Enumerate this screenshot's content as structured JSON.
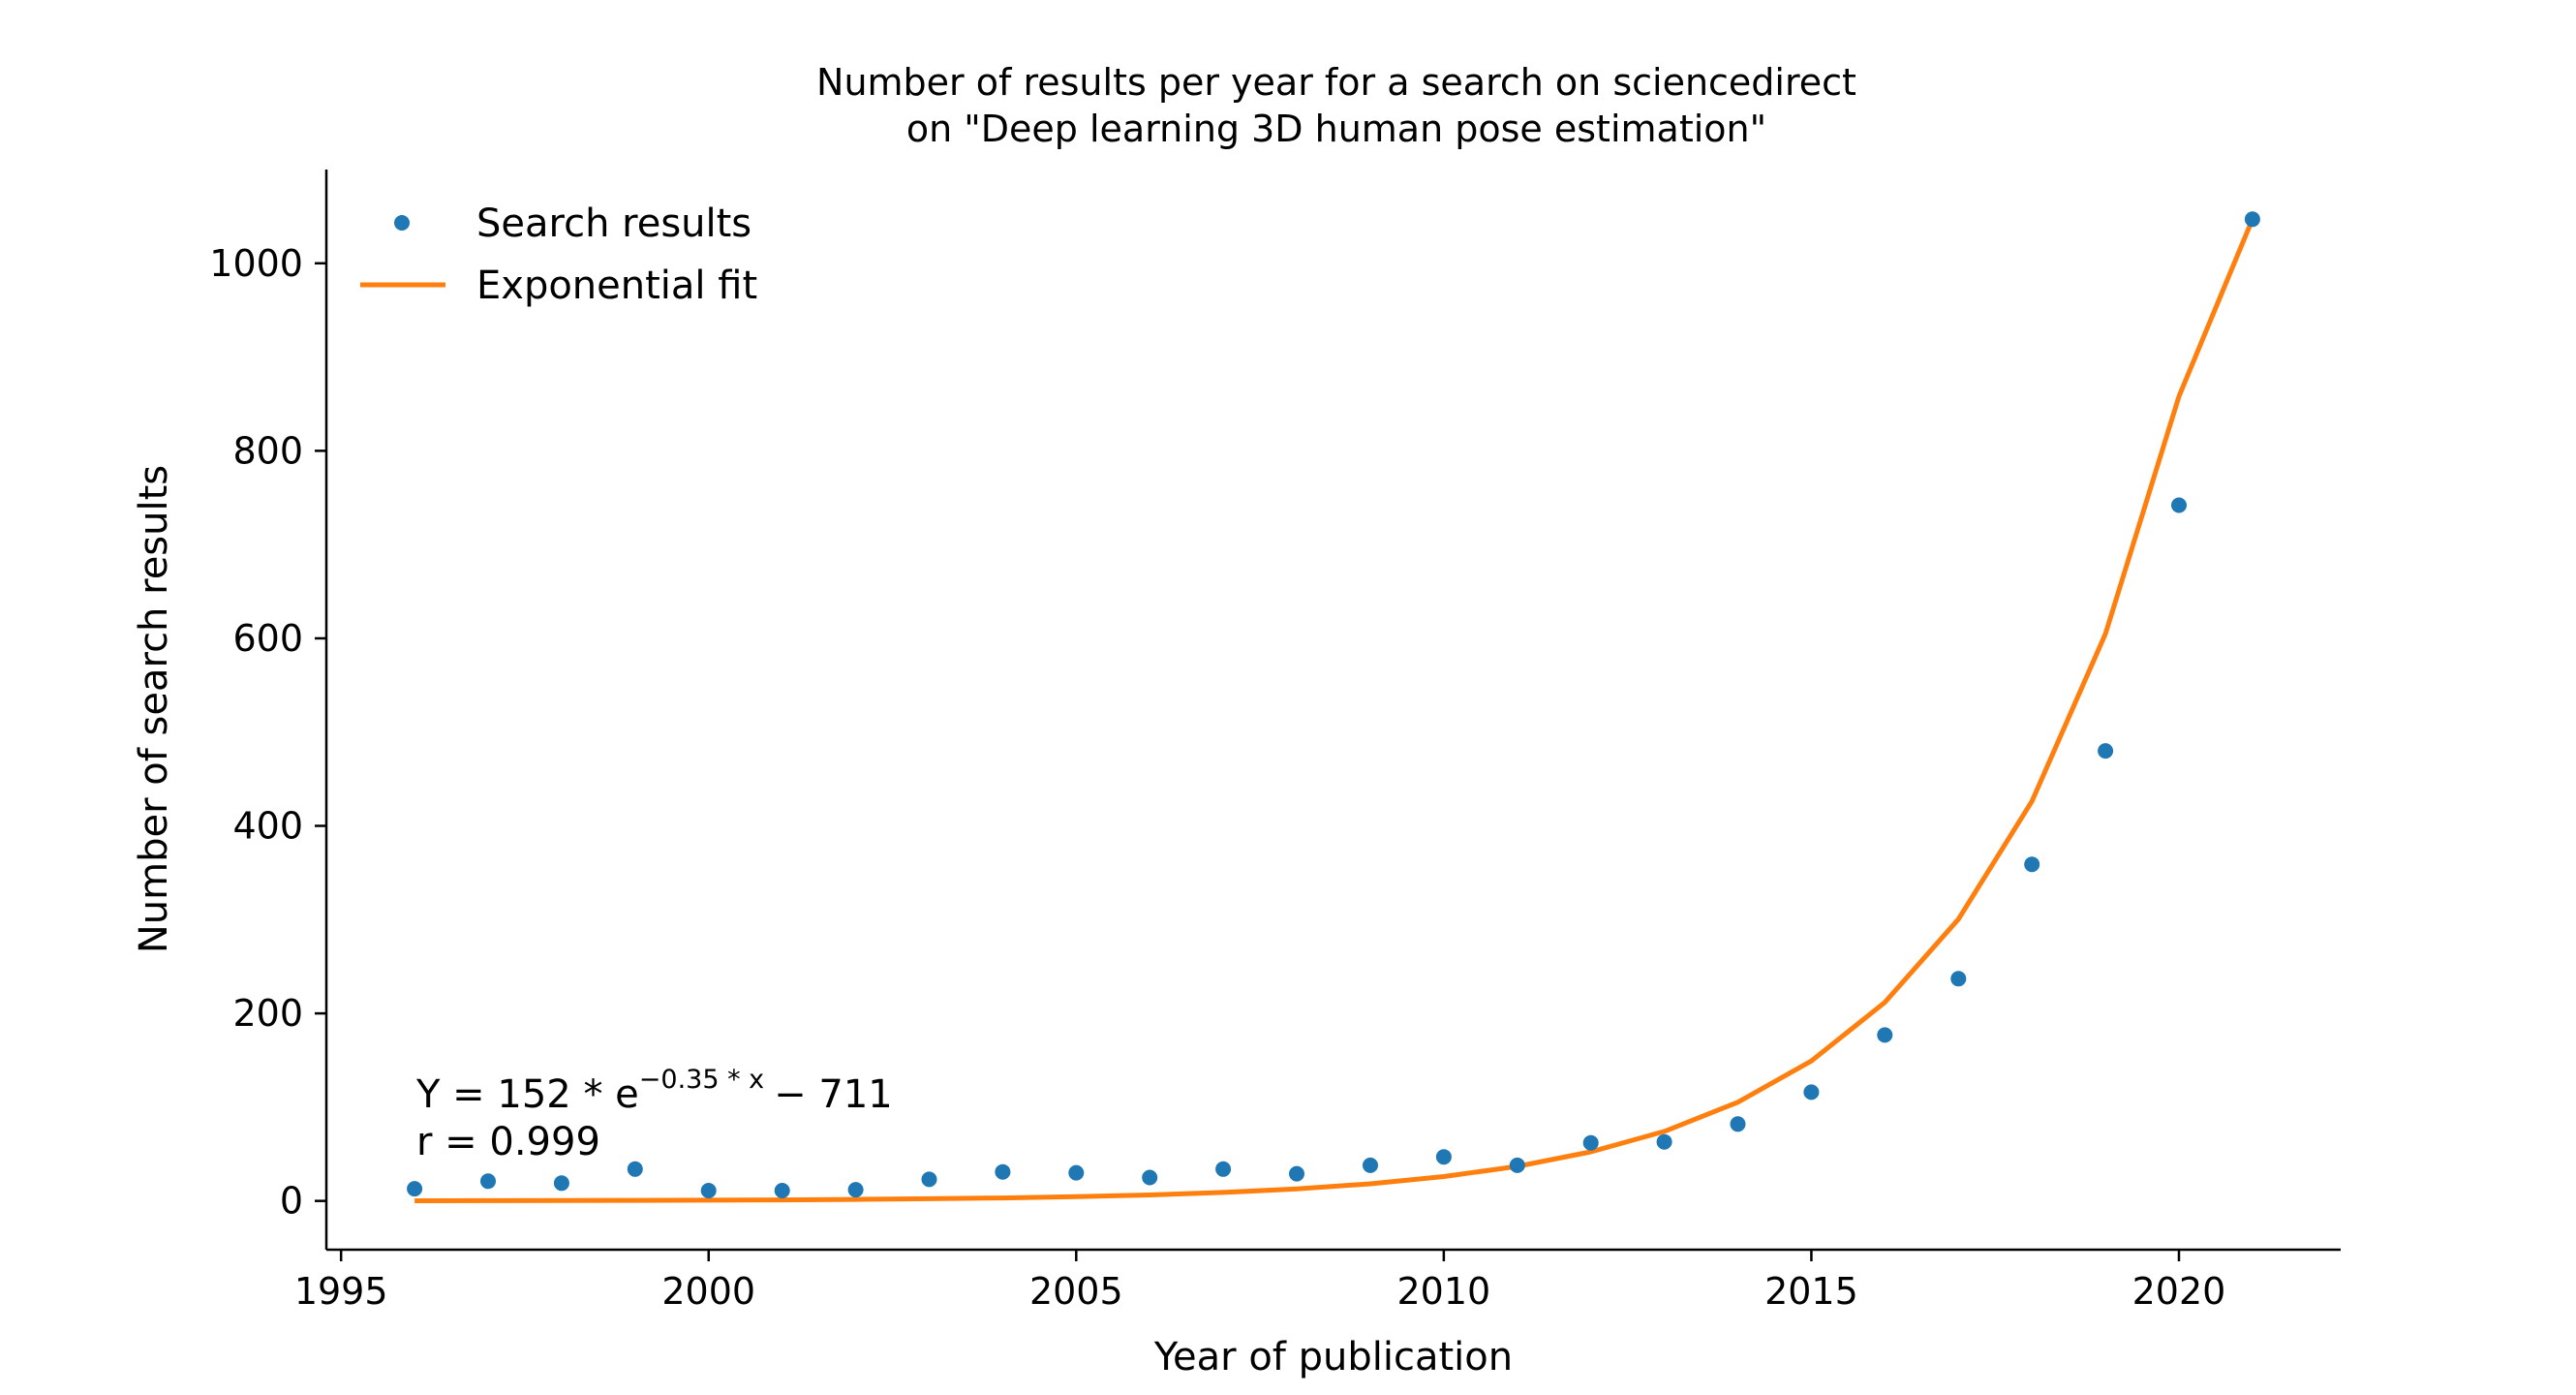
{
  "chart_data": {
    "type": "scatter",
    "title": [
      "Number of results per year for a search on sciencedirect",
      "on \"Deep learning 3D human pose estimation\""
    ],
    "xlabel": "Year of publication",
    "ylabel": "Number of search results",
    "xlim": [
      1994.8,
      2022.2
    ],
    "ylim": [
      -52,
      1100
    ],
    "xticks": [
      1995,
      2000,
      2005,
      2010,
      2015,
      2020
    ],
    "yticks": [
      0,
      200,
      400,
      600,
      800,
      1000
    ],
    "grid": false,
    "legend_position": "top-left",
    "series": [
      {
        "name": "Search results",
        "kind": "points",
        "color": "#1f77b4",
        "x": [
          1996,
          1997,
          1998,
          1999,
          2000,
          2001,
          2002,
          2003,
          2004,
          2005,
          2006,
          2007,
          2008,
          2009,
          2010,
          2011,
          2012,
          2013,
          2014,
          2015,
          2016,
          2017,
          2018,
          2019,
          2020,
          2021
        ],
        "y": [
          13,
          21,
          19,
          34,
          11,
          11,
          12,
          23,
          31,
          30,
          25,
          34,
          29,
          38,
          47,
          38,
          62,
          63,
          82,
          116,
          177,
          237,
          359,
          480,
          742,
          1047
        ]
      },
      {
        "name": "Exponential fit",
        "kind": "line",
        "color": "#ff7f0e",
        "x": [
          1996,
          1997,
          1998,
          1999,
          2000,
          2001,
          2002,
          2003,
          2004,
          2005,
          2006,
          2007,
          2008,
          2009,
          2010,
          2011,
          2012,
          2013,
          2014,
          2015,
          2016,
          2017,
          2018,
          2019,
          2020,
          2021
        ],
        "y": [
          0.2,
          0.3,
          0.4,
          0.6,
          0.8,
          1.1,
          1.6,
          2.3,
          3.2,
          4.5,
          6.4,
          9.1,
          12.9,
          18.3,
          26,
          36.9,
          52.3,
          74.2,
          105.2,
          149.3,
          211.8,
          300.5,
          426.3,
          604.8,
          858,
          1047
        ]
      }
    ],
    "annotations": {
      "equation_main": "Y = 152 * e",
      "equation_exponent": "−0.35 * x",
      "equation_tail": "− 711",
      "r_value": "r = 0.999"
    }
  }
}
